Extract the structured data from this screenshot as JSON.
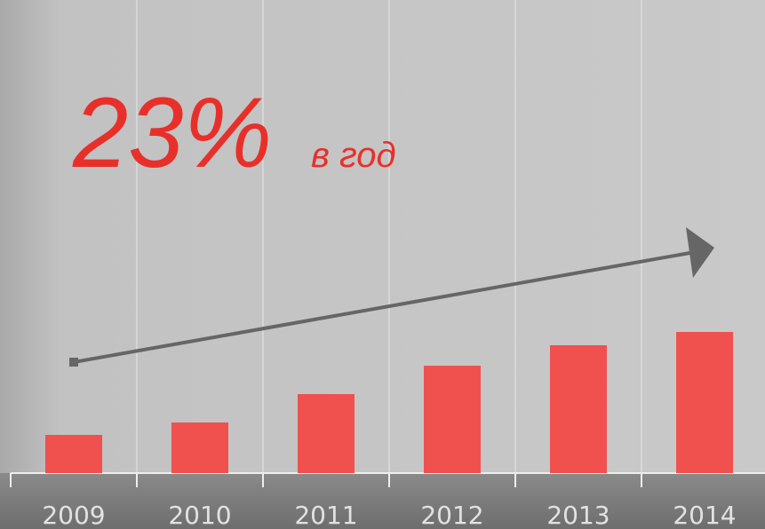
{
  "chart_data": {
    "type": "bar",
    "annotation": "23%",
    "annotation_suffix": "в год",
    "categories": [
      "2009",
      "2010",
      "2011",
      "2012",
      "2013",
      "2014"
    ],
    "values": [
      43,
      57,
      89,
      121,
      144,
      159
    ],
    "color": "#f0504e",
    "ylim": [
      0,
      525
    ]
  }
}
